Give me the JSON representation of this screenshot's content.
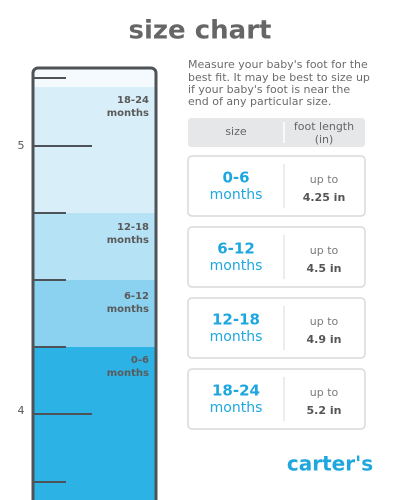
{
  "header": {
    "title": "size chart"
  },
  "description": {
    "lines": [
      "Measure your baby's foot for the",
      "best fit. It may be best to size up",
      "if your baby's foot is near the",
      "end of any particular size."
    ]
  },
  "ruler": {
    "marks": [
      "5",
      "4"
    ],
    "bands": [
      {
        "size": "18-24",
        "unit": "months"
      },
      {
        "size": "12-18",
        "unit": "months"
      },
      {
        "size": "6-12",
        "unit": "months"
      },
      {
        "size": "0-6",
        "unit": "months"
      }
    ]
  },
  "table": {
    "header": {
      "size": "size",
      "foot_length": [
        "foot length",
        "(in)"
      ]
    },
    "rows": [
      {
        "size": "0-6",
        "unit": "months",
        "prefix": "up to",
        "length": "4.25 in"
      },
      {
        "size": "6-12",
        "unit": "months",
        "prefix": "up to",
        "length": "4.5 in"
      },
      {
        "size": "12-18",
        "unit": "months",
        "prefix": "up to",
        "length": "4.9 in"
      },
      {
        "size": "18-24",
        "unit": "months",
        "prefix": "up to",
        "length": "5.2 in"
      }
    ]
  },
  "brand": {
    "logo": "carter's"
  }
}
